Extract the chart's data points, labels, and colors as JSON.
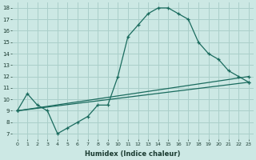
{
  "background_color": "#cce8e4",
  "grid_color": "#aacfca",
  "line_color": "#1a6b5e",
  "xlabel": "Humidex (Indice chaleur)",
  "xlim": [
    -0.5,
    23.5
  ],
  "ylim": [
    6.5,
    18.5
  ],
  "xticks": [
    0,
    1,
    2,
    3,
    4,
    5,
    6,
    7,
    8,
    9,
    10,
    11,
    12,
    13,
    14,
    15,
    16,
    17,
    18,
    19,
    20,
    21,
    22,
    23
  ],
  "yticks": [
    7,
    8,
    9,
    10,
    11,
    12,
    13,
    14,
    15,
    16,
    17,
    18
  ],
  "series1_x": [
    0,
    1,
    2,
    3,
    4,
    5,
    6,
    7,
    8,
    9,
    10,
    11,
    12,
    13,
    14,
    15,
    16,
    17,
    18,
    19,
    20,
    21,
    22,
    23
  ],
  "series1_y": [
    9.0,
    10.5,
    9.5,
    9.0,
    7.0,
    7.5,
    8.0,
    8.5,
    9.5,
    9.5,
    12.0,
    15.5,
    16.5,
    17.5,
    18.0,
    18.0,
    17.5,
    17.0,
    15.0,
    14.0,
    13.5,
    12.5,
    12.0,
    11.5
  ],
  "series2_x": [
    0,
    23
  ],
  "series2_y": [
    9.0,
    12.0
  ],
  "series3_x": [
    0,
    23
  ],
  "series3_y": [
    9.0,
    11.5
  ]
}
